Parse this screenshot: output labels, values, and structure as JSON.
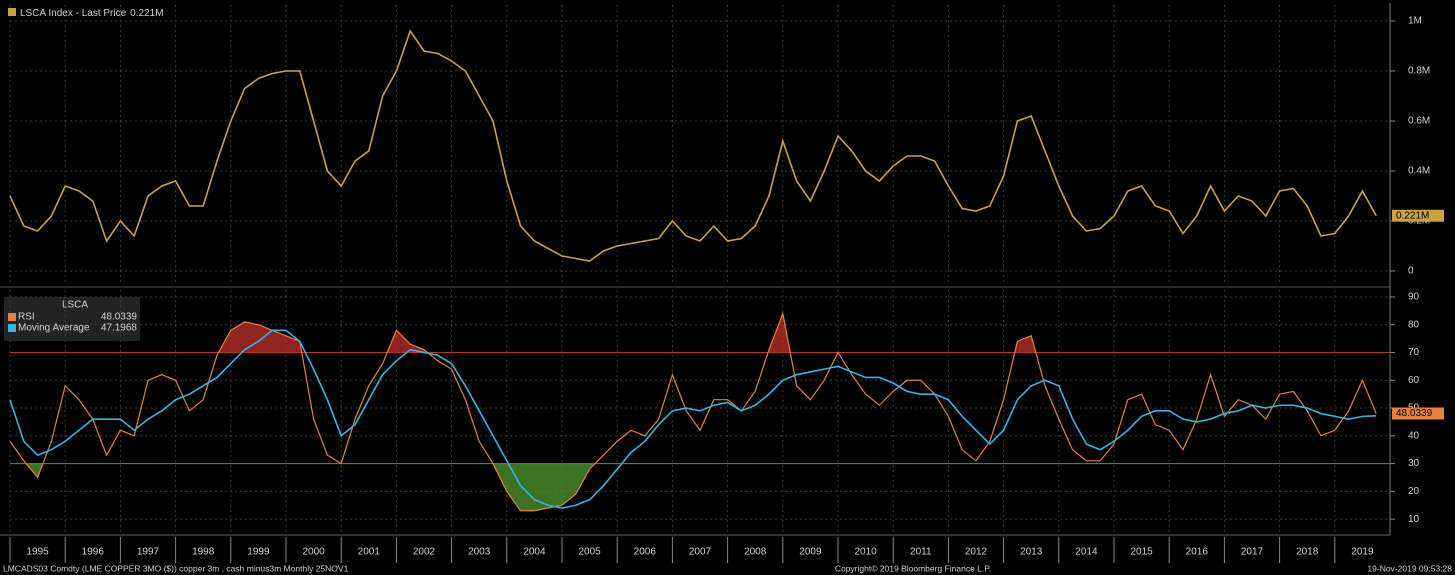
{
  "chart_data": [
    {
      "type": "line",
      "xlim": [
        1995,
        2020
      ],
      "x": [
        1995,
        1995.25,
        1995.5,
        1995.75,
        1996,
        1996.25,
        1996.5,
        1996.75,
        1997,
        1997.25,
        1997.5,
        1997.75,
        1998,
        1998.25,
        1998.5,
        1998.75,
        1999,
        1999.25,
        1999.5,
        1999.75,
        2000,
        2000.25,
        2000.5,
        2000.75,
        2001,
        2001.25,
        2001.5,
        2001.75,
        2002,
        2002.25,
        2002.5,
        2002.75,
        2003,
        2003.25,
        2003.5,
        2003.75,
        2004,
        2004.25,
        2004.5,
        2004.75,
        2005,
        2005.25,
        2005.5,
        2005.75,
        2006,
        2006.25,
        2006.5,
        2006.75,
        2007,
        2007.25,
        2007.5,
        2007.75,
        2008,
        2008.25,
        2008.5,
        2008.75,
        2009,
        2009.25,
        2009.5,
        2009.75,
        2010,
        2010.25,
        2010.5,
        2010.75,
        2011,
        2011.25,
        2011.5,
        2011.75,
        2012,
        2012.25,
        2012.5,
        2012.75,
        2013,
        2013.25,
        2013.5,
        2013.75,
        2014,
        2014.25,
        2014.5,
        2014.75,
        2015,
        2015.25,
        2015.5,
        2015.75,
        2016,
        2016.25,
        2016.5,
        2016.75,
        2017,
        2017.25,
        2017.5,
        2017.75,
        2018,
        2018.25,
        2018.5,
        2018.75,
        2019,
        2019.25,
        2019.5,
        2019.75
      ],
      "series": [
        {
          "name": "LSCA Index - Last Price",
          "last_label": "0.221M",
          "color": "#c9a43e",
          "values": [
            300000,
            180000,
            160000,
            220000,
            340000,
            320000,
            280000,
            120000,
            200000,
            140000,
            300000,
            340000,
            360000,
            260000,
            260000,
            440000,
            600000,
            730000,
            770000,
            790000,
            800000,
            800000,
            600000,
            400000,
            340000,
            440000,
            480000,
            700000,
            800000,
            960000,
            880000,
            870000,
            840000,
            800000,
            700000,
            600000,
            360000,
            180000,
            120000,
            90000,
            60000,
            50000,
            40000,
            80000,
            100000,
            110000,
            120000,
            130000,
            200000,
            140000,
            120000,
            180000,
            120000,
            130000,
            180000,
            300000,
            520000,
            360000,
            280000,
            400000,
            540000,
            480000,
            400000,
            360000,
            420000,
            460000,
            460000,
            440000,
            340000,
            250000,
            240000,
            260000,
            380000,
            600000,
            620000,
            480000,
            340000,
            220000,
            160000,
            170000,
            220000,
            320000,
            340000,
            260000,
            240000,
            150000,
            220000,
            340000,
            240000,
            300000,
            280000,
            220000,
            320000,
            330000,
            260000,
            140000,
            150000,
            220000,
            320000,
            221000
          ]
        }
      ],
      "ylim": [
        -48000,
        1064000
      ],
      "yticks": [
        0,
        {
          "value": 200000,
          "label": "0.2M"
        },
        {
          "value": 400000,
          "label": "0.4M"
        },
        {
          "value": 600000,
          "label": "0.6M"
        },
        {
          "value": 800000,
          "label": "0.8M"
        },
        {
          "value": 1000000,
          "label": "1M"
        }
      ],
      "grid": true
    },
    {
      "type": "line",
      "title": "LSCA",
      "xlim": [
        1995,
        2020
      ],
      "x": [
        1995,
        1995.25,
        1995.5,
        1995.75,
        1996,
        1996.25,
        1996.5,
        1996.75,
        1997,
        1997.25,
        1997.5,
        1997.75,
        1998,
        1998.25,
        1998.5,
        1998.75,
        1999,
        1999.25,
        1999.5,
        1999.75,
        2000,
        2000.25,
        2000.5,
        2000.75,
        2001,
        2001.25,
        2001.5,
        2001.75,
        2002,
        2002.25,
        2002.5,
        2002.75,
        2003,
        2003.25,
        2003.5,
        2003.75,
        2004,
        2004.25,
        2004.5,
        2004.75,
        2005,
        2005.25,
        2005.5,
        2005.75,
        2006,
        2006.25,
        2006.5,
        2006.75,
        2007,
        2007.25,
        2007.5,
        2007.75,
        2008,
        2008.25,
        2008.5,
        2008.75,
        2009,
        2009.25,
        2009.5,
        2009.75,
        2010,
        2010.25,
        2010.5,
        2010.75,
        2011,
        2011.25,
        2011.5,
        2011.75,
        2012,
        2012.25,
        2012.5,
        2012.75,
        2013,
        2013.25,
        2013.5,
        2013.75,
        2014,
        2014.25,
        2014.5,
        2014.75,
        2015,
        2015.25,
        2015.5,
        2015.75,
        2016,
        2016.25,
        2016.5,
        2016.75,
        2017,
        2017.25,
        2017.5,
        2017.75,
        2018,
        2018.25,
        2018.5,
        2018.75,
        2019,
        2019.25,
        2019.5,
        2019.75
      ],
      "xticks": [
        1995,
        1996,
        1997,
        1998,
        1999,
        2000,
        2001,
        2002,
        2003,
        2004,
        2005,
        2006,
        2007,
        2008,
        2009,
        2010,
        2011,
        2012,
        2013,
        2014,
        2015,
        2016,
        2017,
        2018,
        2019
      ],
      "series": [
        {
          "name": "RSI",
          "color": "#e8803a",
          "values": [
            38,
            31,
            25,
            38,
            58,
            53,
            46,
            33,
            42,
            40,
            60,
            62,
            60,
            49,
            53,
            69,
            78,
            81,
            80,
            78,
            76,
            74,
            46,
            33,
            30,
            46,
            58,
            66,
            78,
            73,
            71,
            67,
            64,
            53,
            38,
            30,
            20,
            13,
            13,
            14,
            15,
            19,
            28,
            33,
            38,
            42,
            40,
            46,
            62,
            49,
            42,
            53,
            53,
            49,
            56,
            71,
            84,
            58,
            53,
            60,
            70,
            62,
            55,
            51,
            56,
            60,
            60,
            55,
            47,
            35,
            31,
            38,
            53,
            74,
            76,
            58,
            46,
            35,
            31,
            31,
            37,
            53,
            55,
            44,
            42,
            35,
            46,
            62,
            47,
            53,
            51,
            46,
            55,
            56,
            49,
            40,
            42,
            49,
            60,
            48.0339
          ]
        },
        {
          "name": "Moving Average",
          "color": "#2fb6ea",
          "values": [
            53,
            38,
            33,
            35,
            38,
            42,
            46,
            46,
            46,
            42,
            46,
            49,
            53,
            55,
            58,
            61,
            66,
            71,
            74,
            78,
            78,
            74,
            64,
            53,
            40,
            44,
            53,
            62,
            67,
            71,
            70,
            69,
            66,
            58,
            49,
            40,
            31,
            22,
            17,
            15,
            14,
            15,
            17,
            22,
            28,
            34,
            38,
            44,
            49,
            50,
            49,
            51,
            52,
            49,
            51,
            55,
            60,
            62,
            63,
            64,
            65,
            63,
            61,
            61,
            59,
            56,
            55,
            55,
            53,
            47,
            42,
            37,
            42,
            53,
            58,
            60,
            58,
            46,
            37,
            35,
            38,
            42,
            47,
            49,
            49,
            46,
            45,
            46,
            48,
            49,
            51,
            50,
            51,
            51,
            50,
            48,
            47,
            46,
            47,
            47.1968
          ]
        }
      ],
      "overbought": 70,
      "overbought_color": "#c0302a",
      "oversold": 30,
      "oversold_color": "#4f9a2c",
      "ylim": [
        5,
        92.5
      ],
      "yticks": [
        10,
        20,
        30,
        40,
        50,
        60,
        70,
        80,
        90
      ],
      "grid": true
    }
  ],
  "footer": {
    "left": "LMCADS03 Comdty (LME COPPER    3MO ($)) copper 3m , cash minus3m  Monthly 25NOV1",
    "center": "Copyright© 2019 Bloomberg Finance L.P.",
    "right": "19-Nov-2019 09:53:28"
  }
}
